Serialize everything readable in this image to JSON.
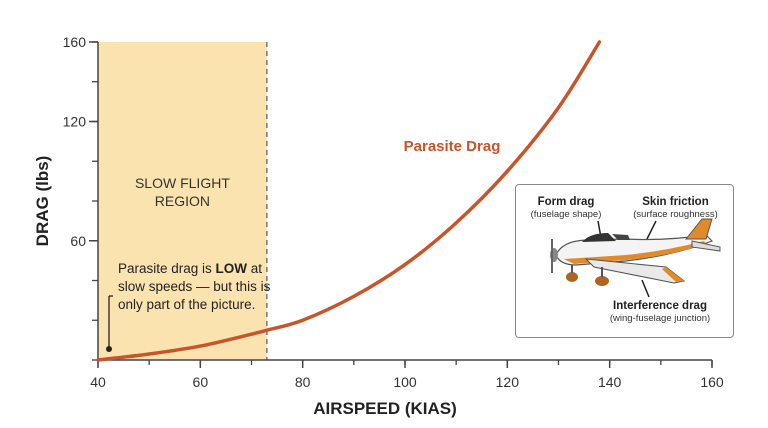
{
  "chart_data": {
    "type": "line",
    "title": "",
    "xlabel": "AIRSPEED (KIAS)",
    "ylabel": "DRAG (lbs)",
    "xlim": [
      40,
      160
    ],
    "ylim": [
      0,
      160
    ],
    "x_ticks": [
      40,
      60,
      80,
      100,
      120,
      140,
      160
    ],
    "y_ticks": [
      60,
      120,
      160
    ],
    "series": [
      {
        "name": "Parasite Drag",
        "color": "#c9542a",
        "x": [
          40,
          50,
          60,
          70,
          73,
          80,
          90,
          100,
          110,
          120,
          130,
          138
        ],
        "y": [
          0,
          3,
          7,
          13,
          15,
          20,
          32,
          48,
          69,
          95,
          127,
          160
        ]
      }
    ],
    "region": {
      "label_line1": "SLOW FLIGHT",
      "label_line2": "REGION",
      "x_start": 40,
      "x_end": 73,
      "fill_color": "#fbe3b0"
    },
    "annotation": {
      "text_before": "Parasite drag is ",
      "text_bold": "LOW",
      "text_after": " at slow speeds — but this is only part of the picture."
    },
    "inset": {
      "form_drag": {
        "title": "Form drag",
        "sub": "(fuselage shape)"
      },
      "skin_friction": {
        "title": "Skin friction",
        "sub": "(surface roughness)"
      },
      "interference_drag": {
        "title": "Interference drag",
        "sub": "(wing-fuselage junction)"
      }
    }
  }
}
